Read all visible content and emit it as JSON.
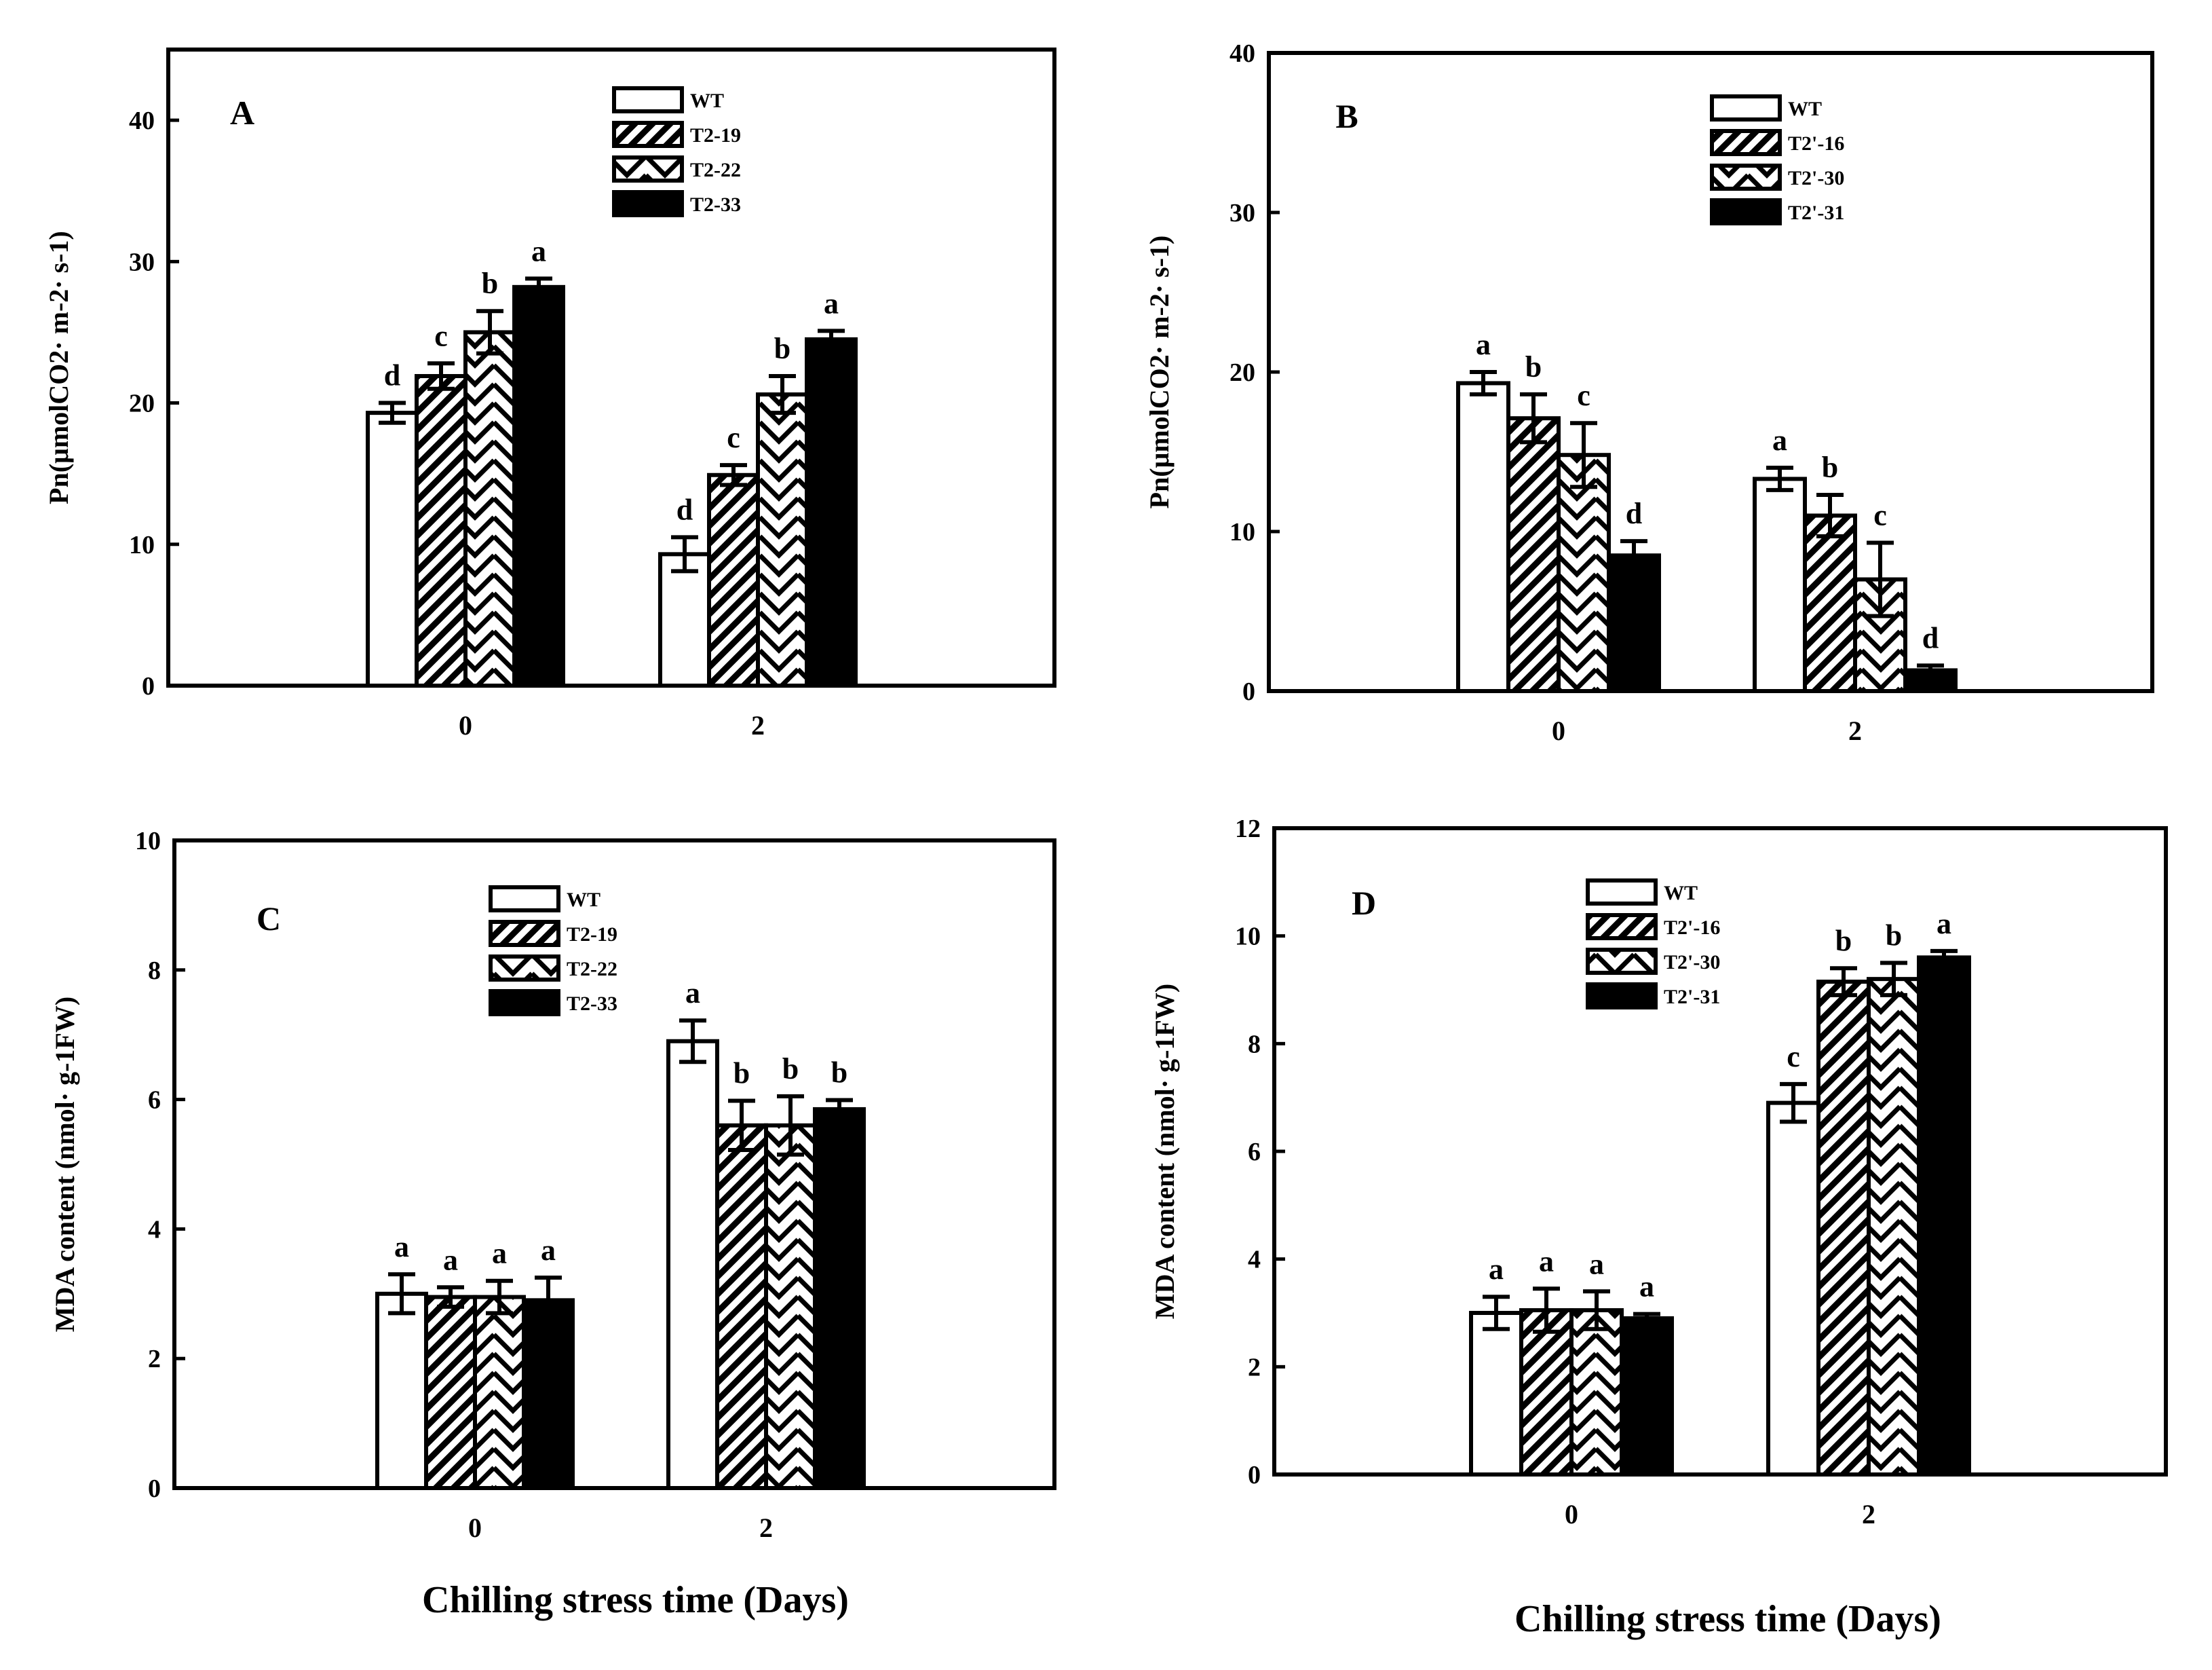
{
  "xlabels": [
    "Chilling stress time (Days)",
    "Chilling stress time (Days)"
  ],
  "chart_data": [
    {
      "type": "bar",
      "panel": "A",
      "ylabel": "Pn(μmolCO2· m-2· s-1)",
      "ylim": [
        0,
        45
      ],
      "yticks": [
        0,
        10,
        20,
        30,
        40
      ],
      "categories": [
        "0",
        "2"
      ],
      "legend_position": "top-center",
      "series": [
        {
          "name": "WT",
          "pattern": "white",
          "values": [
            19.3,
            9.3
          ],
          "errors": [
            0.7,
            1.2
          ],
          "letters": [
            "d",
            "d"
          ]
        },
        {
          "name": "T2-19",
          "pattern": "diag",
          "values": [
            21.9,
            14.9
          ],
          "errors": [
            0.9,
            0.7
          ],
          "letters": [
            "c",
            "c"
          ]
        },
        {
          "name": "T2-22",
          "pattern": "chevron",
          "values": [
            25.0,
            20.6
          ],
          "errors": [
            1.5,
            1.3
          ],
          "letters": [
            "b",
            "b"
          ]
        },
        {
          "name": "T2-33",
          "pattern": "black",
          "values": [
            28.2,
            24.5
          ],
          "errors": [
            0.6,
            0.6
          ],
          "letters": [
            "a",
            "a"
          ]
        }
      ]
    },
    {
      "type": "bar",
      "panel": "B",
      "ylabel": "Pn(μmolCO2· m-2· s-1)",
      "ylim": [
        0,
        40
      ],
      "yticks": [
        0,
        10,
        20,
        30,
        40
      ],
      "categories": [
        "0",
        "2"
      ],
      "legend_position": "top-center",
      "series": [
        {
          "name": "WT",
          "pattern": "white",
          "values": [
            19.3,
            13.3
          ],
          "errors": [
            0.7,
            0.7
          ],
          "letters": [
            "a",
            "a"
          ]
        },
        {
          "name": "T2'-16",
          "pattern": "diag",
          "values": [
            17.1,
            11.0
          ],
          "errors": [
            1.5,
            1.3
          ],
          "letters": [
            "b",
            "b"
          ]
        },
        {
          "name": "T2'-30",
          "pattern": "chevron",
          "values": [
            14.8,
            7.0
          ],
          "errors": [
            2.0,
            2.3
          ],
          "letters": [
            "c",
            "c"
          ]
        },
        {
          "name": "T2'-31",
          "pattern": "black",
          "values": [
            8.5,
            1.3
          ],
          "errors": [
            0.9,
            0.3
          ],
          "letters": [
            "d",
            "d"
          ]
        }
      ]
    },
    {
      "type": "bar",
      "panel": "C",
      "ylabel": "MDA content (nmol· g-1FW)",
      "ylim": [
        0,
        10
      ],
      "yticks": [
        0,
        2,
        4,
        6,
        8,
        10
      ],
      "categories": [
        "0",
        "2"
      ],
      "legend_position": "top-center",
      "series": [
        {
          "name": "WT",
          "pattern": "white",
          "values": [
            3.0,
            6.9
          ],
          "errors": [
            0.3,
            0.32
          ],
          "letters": [
            "a",
            "a"
          ]
        },
        {
          "name": "T2-19",
          "pattern": "diag",
          "values": [
            2.95,
            5.6
          ],
          "errors": [
            0.15,
            0.38
          ],
          "letters": [
            "a",
            "b"
          ]
        },
        {
          "name": "T2-22",
          "pattern": "chevron",
          "values": [
            2.95,
            5.6
          ],
          "errors": [
            0.25,
            0.45
          ],
          "letters": [
            "a",
            "b"
          ]
        },
        {
          "name": "T2-33",
          "pattern": "black",
          "values": [
            2.9,
            5.85
          ],
          "errors": [
            0.35,
            0.14
          ],
          "letters": [
            "a",
            "b"
          ]
        }
      ]
    },
    {
      "type": "bar",
      "panel": "D",
      "ylabel": "MDA content (nmol· g-1FW)",
      "ylim": [
        0,
        12
      ],
      "yticks": [
        0,
        2,
        4,
        6,
        8,
        10,
        12
      ],
      "categories": [
        "0",
        "2"
      ],
      "legend_position": "top-center",
      "series": [
        {
          "name": "WT",
          "pattern": "white",
          "values": [
            3.0,
            6.9
          ],
          "errors": [
            0.3,
            0.35
          ],
          "letters": [
            "a",
            "c"
          ]
        },
        {
          "name": "T2'-16",
          "pattern": "diag",
          "values": [
            3.05,
            9.15
          ],
          "errors": [
            0.4,
            0.25
          ],
          "letters": [
            "a",
            "b"
          ]
        },
        {
          "name": "T2'-30",
          "pattern": "chevron",
          "values": [
            3.05,
            9.2
          ],
          "errors": [
            0.35,
            0.3
          ],
          "letters": [
            "a",
            "b"
          ]
        },
        {
          "name": "T2'-31",
          "pattern": "black",
          "values": [
            2.9,
            9.6
          ],
          "errors": [
            0.08,
            0.12
          ],
          "letters": [
            "a",
            "a"
          ]
        }
      ]
    }
  ]
}
